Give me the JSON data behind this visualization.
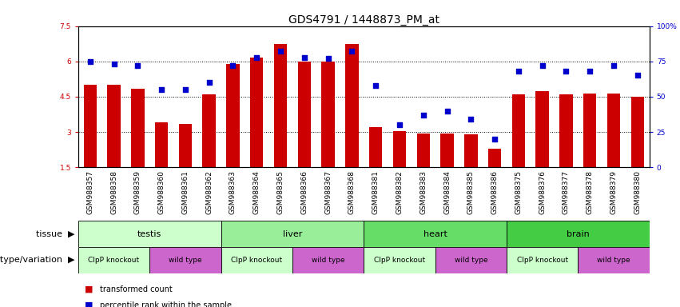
{
  "title": "GDS4791 / 1448873_PM_at",
  "samples": [
    "GSM988357",
    "GSM988358",
    "GSM988359",
    "GSM988360",
    "GSM988361",
    "GSM988362",
    "GSM988363",
    "GSM988364",
    "GSM988365",
    "GSM988366",
    "GSM988367",
    "GSM988368",
    "GSM988381",
    "GSM988382",
    "GSM988383",
    "GSM988384",
    "GSM988385",
    "GSM988386",
    "GSM988375",
    "GSM988376",
    "GSM988377",
    "GSM988378",
    "GSM988379",
    "GSM988380"
  ],
  "bar_values": [
    5.0,
    5.0,
    4.85,
    3.4,
    3.35,
    4.6,
    5.9,
    6.15,
    6.75,
    6.0,
    6.0,
    6.75,
    3.2,
    3.05,
    2.95,
    2.95,
    2.9,
    2.3,
    4.6,
    4.75,
    4.6,
    4.65,
    4.65,
    4.5
  ],
  "dot_values_pct": [
    75,
    73,
    72,
    55,
    55,
    60,
    72,
    78,
    82,
    78,
    77,
    82,
    58,
    30,
    37,
    40,
    34,
    20,
    68,
    72,
    68,
    68,
    72,
    65
  ],
  "ylim_left": [
    1.5,
    7.5
  ],
  "ylim_right": [
    0,
    100
  ],
  "yticks_left": [
    1.5,
    3.0,
    4.5,
    6.0,
    7.5
  ],
  "yticks_right": [
    0,
    25,
    50,
    75,
    100
  ],
  "ytick_labels_left": [
    "1.5",
    "3",
    "4.5",
    "6",
    "7.5"
  ],
  "ytick_labels_right": [
    "0",
    "25",
    "50",
    "75",
    "100%"
  ],
  "bar_color": "#cc0000",
  "dot_color": "#0000cc",
  "bar_bottom": 1.5,
  "tissue_groups": [
    {
      "label": "testis",
      "start": 0,
      "end": 6,
      "color": "#ccffcc"
    },
    {
      "label": "liver",
      "start": 6,
      "end": 12,
      "color": "#99ee99"
    },
    {
      "label": "heart",
      "start": 12,
      "end": 18,
      "color": "#66dd66"
    },
    {
      "label": "brain",
      "start": 18,
      "end": 24,
      "color": "#44cc44"
    }
  ],
  "genotype_groups": [
    {
      "label": "ClpP knockout",
      "start": 0,
      "end": 3,
      "color": "#ccffcc"
    },
    {
      "label": "wild type",
      "start": 3,
      "end": 6,
      "color": "#cc66cc"
    },
    {
      "label": "ClpP knockout",
      "start": 6,
      "end": 9,
      "color": "#ccffcc"
    },
    {
      "label": "wild type",
      "start": 9,
      "end": 12,
      "color": "#cc66cc"
    },
    {
      "label": "ClpP knockout",
      "start": 12,
      "end": 15,
      "color": "#ccffcc"
    },
    {
      "label": "wild type",
      "start": 15,
      "end": 18,
      "color": "#cc66cc"
    },
    {
      "label": "ClpP knockout",
      "start": 18,
      "end": 21,
      "color": "#ccffcc"
    },
    {
      "label": "wild type",
      "start": 21,
      "end": 24,
      "color": "#cc66cc"
    }
  ],
  "row_labels": [
    "tissue",
    "genotype/variation"
  ],
  "legend_items": [
    {
      "label": "transformed count",
      "color": "#cc0000"
    },
    {
      "label": "percentile rank within the sample",
      "color": "#0000cc"
    }
  ],
  "background_color": "#ffffff",
  "title_fontsize": 10,
  "tick_fontsize": 6.5,
  "label_fontsize": 8,
  "xtick_bg_color": "#d0d0d0"
}
